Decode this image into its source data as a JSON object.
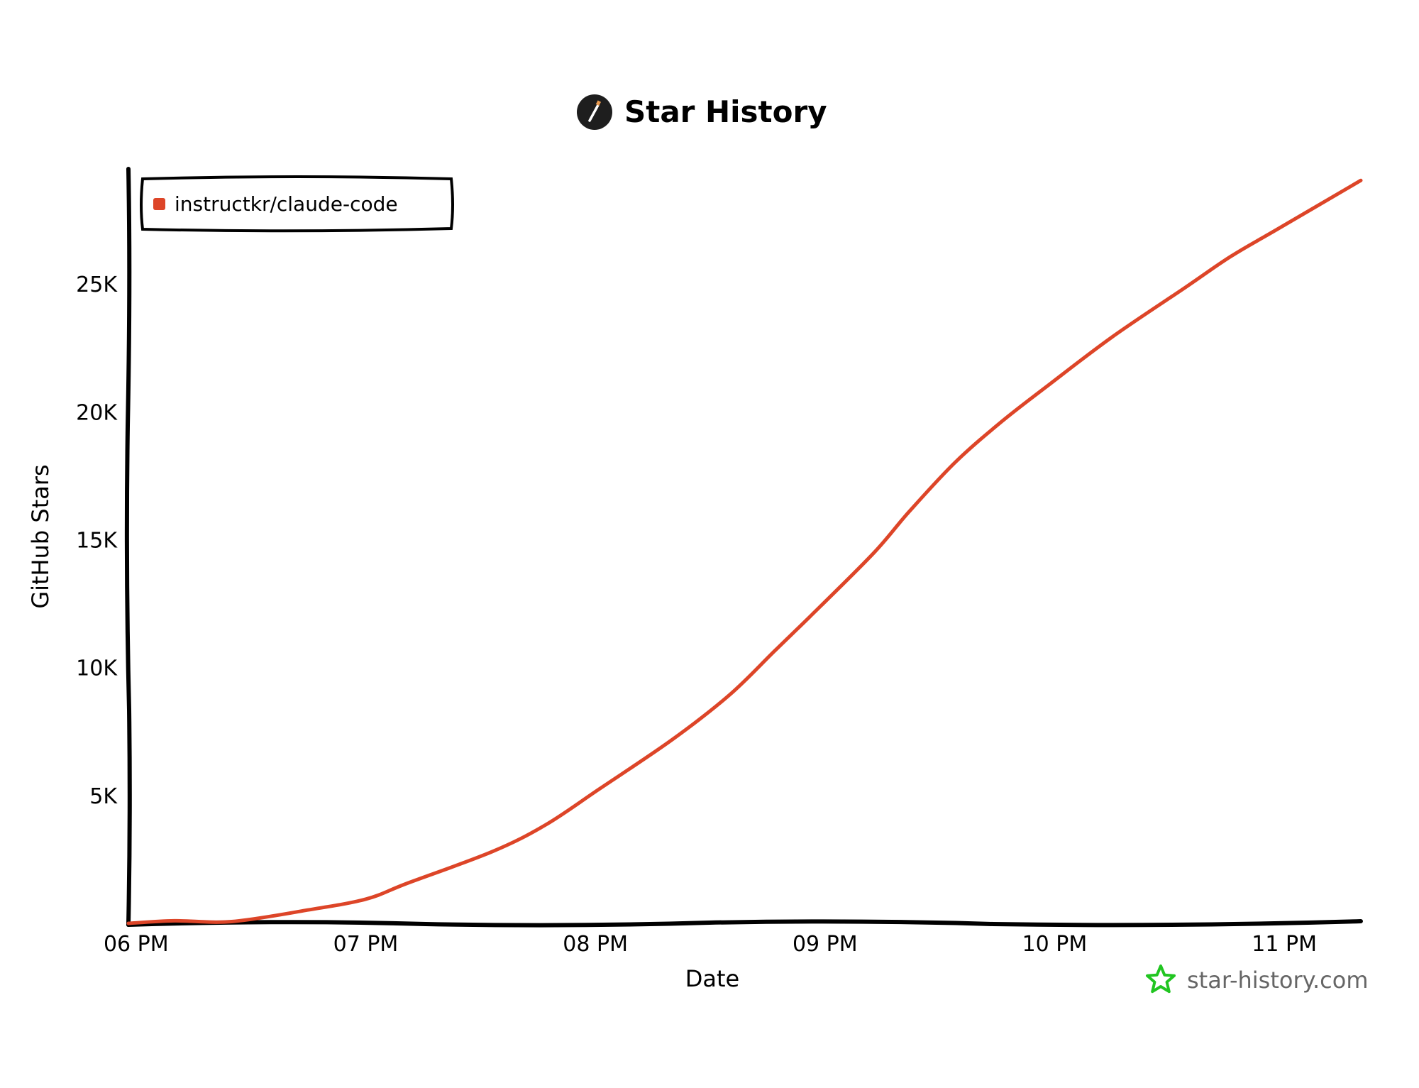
{
  "chart_data": {
    "type": "line",
    "title": "Star History",
    "xlabel": "Date",
    "ylabel": "GitHub Stars",
    "x_ticks": [
      "06 PM",
      "07 PM",
      "08 PM",
      "09 PM",
      "10 PM",
      "11 PM"
    ],
    "y_ticks": [
      "5K",
      "10K",
      "15K",
      "20K",
      "25K"
    ],
    "y_tick_values": [
      5000,
      10000,
      15000,
      20000,
      25000
    ],
    "xlim": [
      "17:58",
      "23:20"
    ],
    "ylim": [
      0,
      29500
    ],
    "grid": false,
    "legend_position": "top-left",
    "series": [
      {
        "name": "instructkr/claude-code",
        "color": "#dd4528",
        "x": [
          "17:58",
          "18:10",
          "18:25",
          "18:45",
          "19:00",
          "19:11",
          "19:33",
          "19:47",
          "20:01",
          "20:20",
          "20:35",
          "20:47",
          "20:59",
          "21:13",
          "21:22",
          "21:34",
          "21:46",
          "21:58",
          "22:15",
          "22:34",
          "22:46",
          "22:58",
          "23:20"
        ],
        "y": [
          0,
          100,
          70,
          525,
          945,
          1575,
          2800,
          3850,
          5250,
          7175,
          8925,
          10675,
          12425,
          14525,
          16100,
          18025,
          19600,
          21000,
          22925,
          24850,
          26075,
          27125,
          29050
        ]
      }
    ]
  },
  "watermark": {
    "text": "star-history.com",
    "icon": "star-outline-icon",
    "color": "#21c521"
  },
  "title_icon": "pen-logo-icon"
}
